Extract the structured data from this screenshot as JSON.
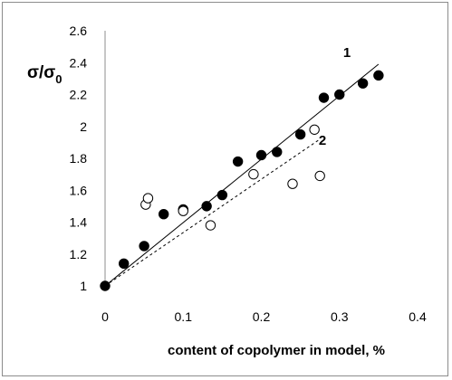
{
  "chart_data": {
    "type": "scatter",
    "ylabel_main": "σ/σ",
    "ylabel_sub": "0",
    "xlabel": "content of copolymer in model, %",
    "xlim": [
      0,
      0.4
    ],
    "ylim": [
      1,
      2.6
    ],
    "x_ticks": [
      0,
      0.1,
      0.2,
      0.3,
      0.4
    ],
    "x_tick_labels": [
      "0",
      "0.1",
      "0.2",
      "0.3",
      "0.4"
    ],
    "y_ticks": [
      1,
      1.2,
      1.4,
      1.6,
      1.8,
      2,
      2.2,
      2.4,
      2.6
    ],
    "y_tick_labels": [
      "1",
      "1.2",
      "1.4",
      "1.6",
      "1.8",
      "2",
      "2.2",
      "2.4",
      "2.6"
    ],
    "grid": false,
    "series": [
      {
        "name": "1",
        "marker": "filled-circle",
        "color": "#000000",
        "points": [
          [
            0,
            1.0
          ],
          [
            0.024,
            1.14
          ],
          [
            0.05,
            1.25
          ],
          [
            0.075,
            1.45
          ],
          [
            0.1,
            1.48
          ],
          [
            0.13,
            1.5
          ],
          [
            0.15,
            1.57
          ],
          [
            0.17,
            1.78
          ],
          [
            0.2,
            1.82
          ],
          [
            0.22,
            1.84
          ],
          [
            0.25,
            1.95
          ],
          [
            0.28,
            2.18
          ],
          [
            0.3,
            2.2
          ],
          [
            0.33,
            2.27
          ],
          [
            0.35,
            2.32
          ]
        ],
        "trendline": {
          "style": "solid",
          "x": [
            0,
            0.35
          ],
          "y": [
            1.0,
            2.39
          ]
        }
      },
      {
        "name": "2",
        "marker": "open-circle",
        "color": "#000000",
        "points": [
          [
            0.052,
            1.51
          ],
          [
            0.055,
            1.55
          ],
          [
            0.1,
            1.47
          ],
          [
            0.135,
            1.38
          ],
          [
            0.19,
            1.7
          ],
          [
            0.24,
            1.64
          ],
          [
            0.268,
            1.98
          ],
          [
            0.275,
            1.69
          ]
        ],
        "trendline": {
          "style": "dashed",
          "x": [
            0,
            0.275
          ],
          "y": [
            1.0,
            1.92
          ]
        }
      }
    ]
  }
}
